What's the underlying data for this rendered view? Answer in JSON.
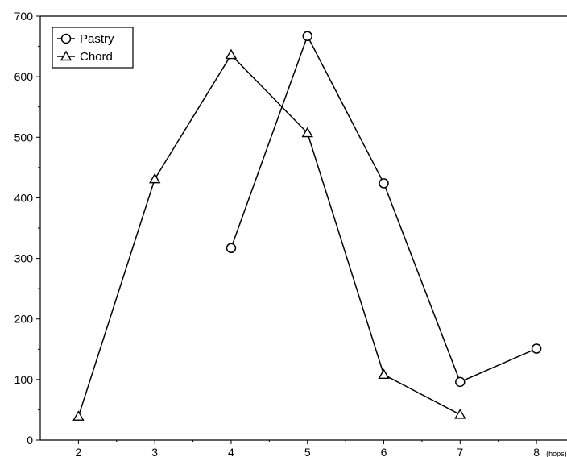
{
  "chart_data": {
    "type": "line",
    "title": "",
    "xlabel": "",
    "ylabel": "",
    "x_unit": "(hops)",
    "xlim": [
      1.5,
      8.4
    ],
    "ylim": [
      0,
      700
    ],
    "x_ticks": [
      2,
      3,
      4,
      5,
      6,
      7,
      8
    ],
    "y_ticks": [
      0,
      100,
      200,
      300,
      400,
      500,
      600,
      700
    ],
    "grid": false,
    "legend_position": "top-left",
    "series": [
      {
        "name": "Pastry",
        "marker": "circle",
        "color": "#000000",
        "x": [
          4,
          5,
          6,
          7,
          8
        ],
        "y": [
          317,
          667,
          424,
          96,
          151
        ]
      },
      {
        "name": "Chord",
        "marker": "triangle",
        "color": "#000000",
        "x": [
          2,
          3,
          4,
          5,
          6,
          7
        ],
        "y": [
          39,
          431,
          636,
          507,
          108,
          42
        ]
      }
    ]
  }
}
